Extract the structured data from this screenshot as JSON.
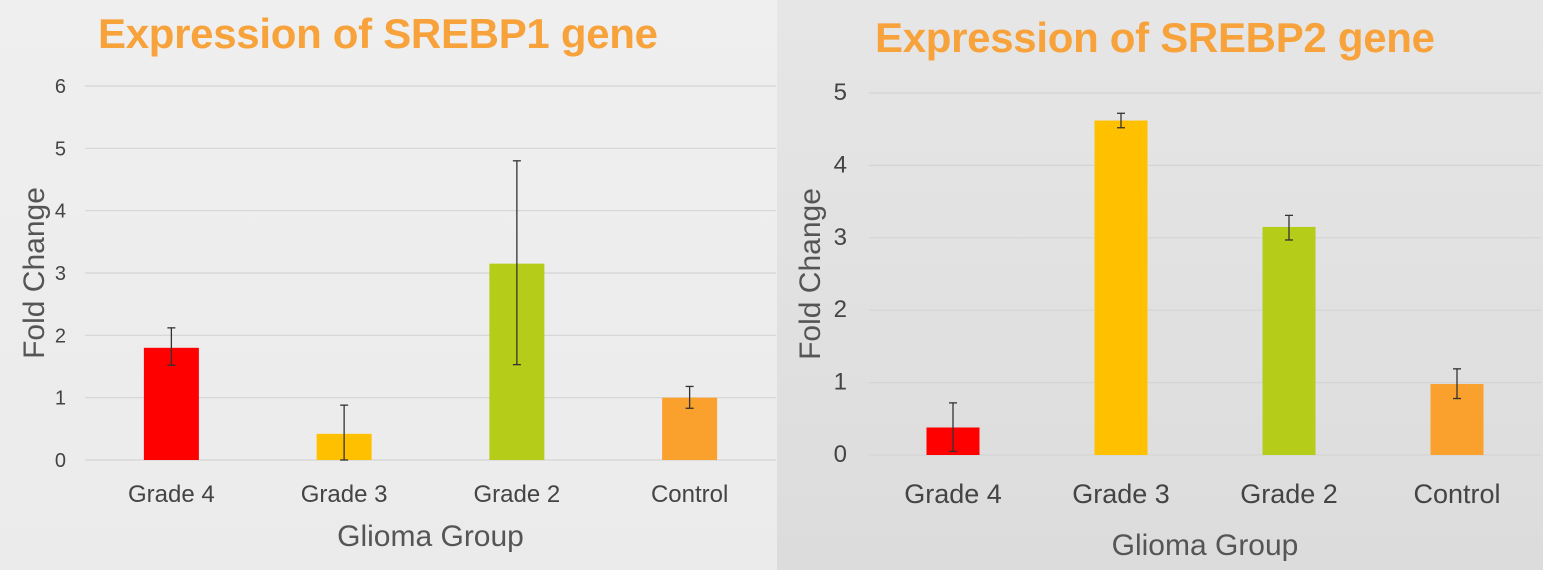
{
  "chart_data": [
    {
      "type": "bar",
      "title": "Expression of SREBP1 gene",
      "title_color": "#f7a23a",
      "xlabel": "Glioma Group",
      "ylabel": "Fold Change",
      "categories": [
        "Grade 4",
        "Grade 3",
        "Grade 2",
        "Control"
      ],
      "values": [
        1.8,
        0.42,
        3.15,
        1.0
      ],
      "errors": [
        [
          1.52,
          2.12
        ],
        [
          0.0,
          0.88
        ],
        [
          1.53,
          4.8
        ],
        [
          0.83,
          1.18
        ]
      ],
      "colors": [
        "#ff0000",
        "#ffc000",
        "#b5cc18",
        "#f9a12c"
      ],
      "yticks": [
        "0",
        "1",
        "2",
        "3",
        "4",
        "5",
        "6"
      ],
      "ylim": [
        0,
        6
      ],
      "grid": true,
      "legend": "none"
    },
    {
      "type": "bar",
      "title": "Expression of SREBP2 gene",
      "title_color": "#f7a23a",
      "xlabel": "Glioma Group",
      "ylabel": "Fold Change",
      "categories": [
        "Grade 4",
        "Grade 3",
        "Grade 2",
        "Control"
      ],
      "values": [
        0.38,
        4.62,
        3.15,
        0.98
      ],
      "errors": [
        [
          0.05,
          0.72
        ],
        [
          4.52,
          4.72
        ],
        [
          2.97,
          3.31
        ],
        [
          0.78,
          1.19
        ]
      ],
      "colors": [
        "#ff0000",
        "#ffc000",
        "#b5cc18",
        "#f9a12c"
      ],
      "yticks": [
        "0",
        "1",
        "2",
        "3",
        "4",
        "5"
      ],
      "ylim": [
        0,
        5
      ],
      "grid": true,
      "legend": "none"
    }
  ]
}
